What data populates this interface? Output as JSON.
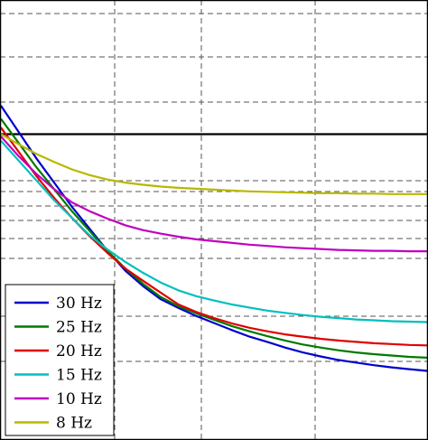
{
  "chart_data": {
    "type": "line",
    "x": [
      0,
      1,
      2,
      3,
      4,
      5,
      6,
      7,
      8,
      9,
      10,
      11,
      12,
      13,
      14,
      15,
      16,
      17,
      18,
      19,
      20,
      21,
      22,
      23,
      24
    ],
    "xlim": [
      0,
      24
    ],
    "ylim": [
      0,
      100
    ],
    "grid": true,
    "legend_placement": "bottom-left",
    "reference_line_y": 69.5,
    "series": [
      {
        "name": "30 Hz",
        "color": "#0000cc",
        "values": [
          76,
          70,
          64,
          58.5,
          53,
          48,
          43,
          38.5,
          35,
          32,
          30,
          28.2,
          26.6,
          25,
          23.5,
          22.3,
          21,
          19.9,
          19,
          18.2,
          17.6,
          17,
          16.5,
          16.1,
          15.7
        ]
      },
      {
        "name": "25 Hz",
        "color": "#007a00",
        "values": [
          73,
          67.5,
          62,
          57,
          52,
          47.5,
          43,
          39,
          35.5,
          32.5,
          30.4,
          28.8,
          27.3,
          25.9,
          24.7,
          23.6,
          22.6,
          21.7,
          21,
          20.4,
          19.9,
          19.5,
          19.2,
          18.9,
          18.7
        ]
      },
      {
        "name": "20 Hz",
        "color": "#e00000",
        "values": [
          71,
          65.5,
          60,
          55,
          50.5,
          46.3,
          42.5,
          39,
          36.2,
          33.5,
          30.8,
          29.1,
          27.7,
          26.5,
          25.5,
          24.7,
          24,
          23.5,
          23,
          22.6,
          22.3,
          22,
          21.8,
          21.6,
          21.5
        ]
      },
      {
        "name": "15 Hz",
        "color": "#00bfbf",
        "values": [
          68,
          63.5,
          59,
          54.5,
          50.5,
          46.5,
          43.3,
          40.5,
          38,
          35.8,
          34,
          32.7,
          31.7,
          30.8,
          30.1,
          29.4,
          28.9,
          28.4,
          28,
          27.7,
          27.4,
          27.2,
          27,
          26.9,
          26.8
        ]
      },
      {
        "name": "10 Hz",
        "color": "#c000c0",
        "values": [
          69,
          64.5,
          60.5,
          57,
          54,
          52,
          50.3,
          48.8,
          47.7,
          46.9,
          46.2,
          45.6,
          45.2,
          44.8,
          44.4,
          44.1,
          43.8,
          43.6,
          43.4,
          43.2,
          43.1,
          43,
          43,
          42.9,
          42.9
        ]
      },
      {
        "name": "8 Hz",
        "color": "#b8b800",
        "values": [
          69.5,
          67.2,
          65,
          63.2,
          61.5,
          60.2,
          59.2,
          58.5,
          58,
          57.6,
          57.3,
          57.1,
          56.9,
          56.7,
          56.5,
          56.4,
          56.3,
          56.2,
          56.1,
          56.1,
          56,
          56,
          55.9,
          55.9,
          55.9
        ]
      }
    ]
  }
}
